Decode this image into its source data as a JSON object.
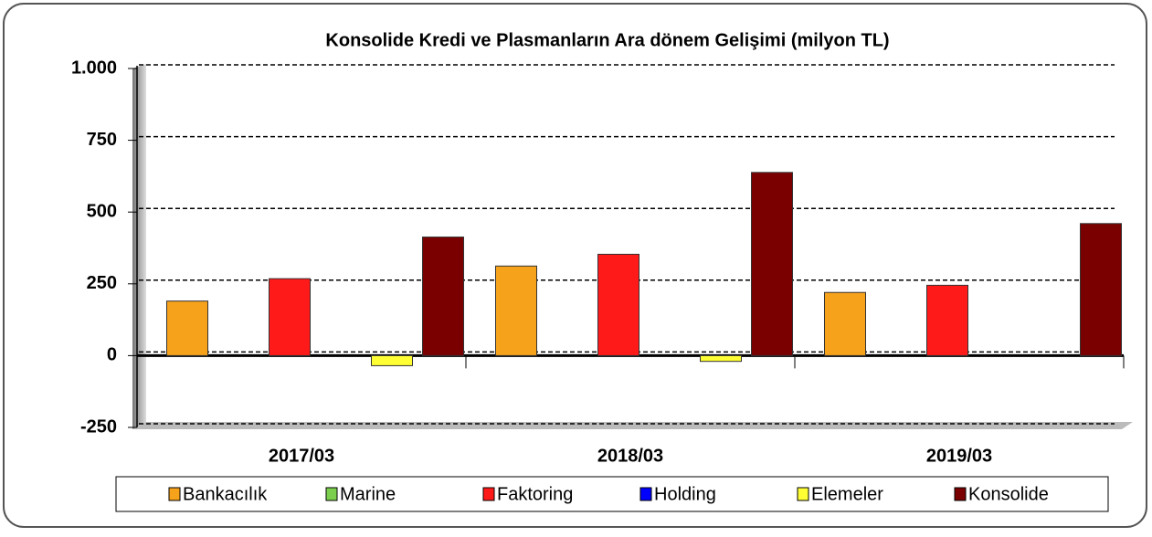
{
  "chart_data": {
    "type": "bar",
    "title": "Konsolide Kredi ve Plasmanların Ara dönem Gelişimi (milyon TL)",
    "categories": [
      "2017/03",
      "2018/03",
      "2019/03"
    ],
    "series": [
      {
        "name": "Bankacılık",
        "color": "#f7a21b",
        "values": [
          190,
          312,
          220
        ]
      },
      {
        "name": "Marine",
        "color": "#7ccf4c",
        "values": [
          0,
          0,
          0
        ]
      },
      {
        "name": "Faktoring",
        "color": "#ff1a1a",
        "values": [
          268,
          353,
          245
        ]
      },
      {
        "name": "Holding",
        "color": "#0000ff",
        "values": [
          0,
          0,
          0
        ]
      },
      {
        "name": "Elemeler",
        "color": "#ffff33",
        "values": [
          -35,
          -20,
          0
        ]
      },
      {
        "name": "Konsolide",
        "color": "#7a0000",
        "values": [
          413,
          638,
          460
        ]
      }
    ],
    "ylim": [
      -250,
      1000
    ],
    "yticks": [
      -250,
      0,
      250,
      500,
      750,
      {
        "value": 1000,
        "label": "1.000"
      }
    ],
    "grid": true
  }
}
